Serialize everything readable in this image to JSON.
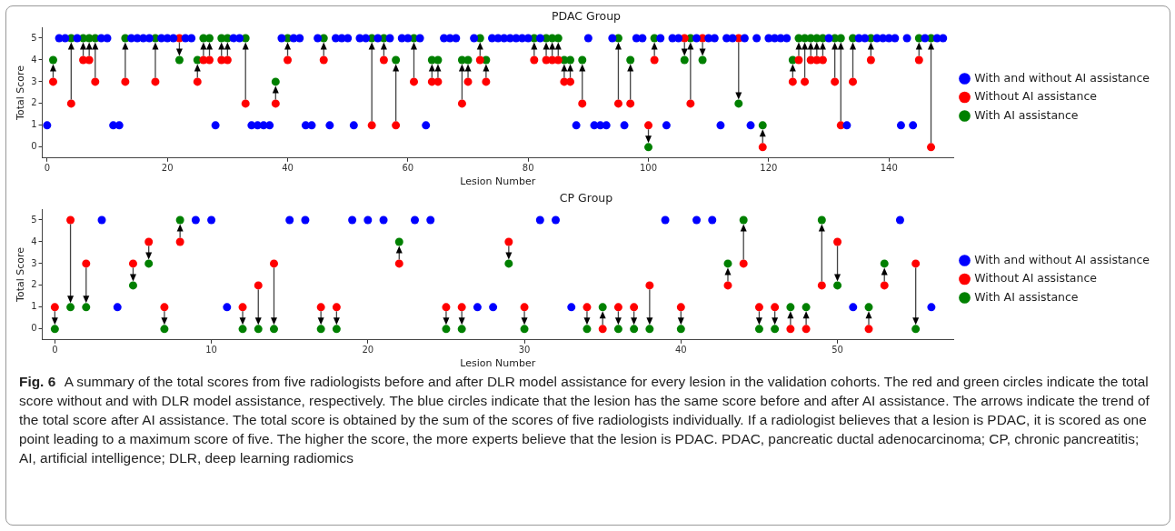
{
  "chart_data": [
    {
      "type": "scatter",
      "title": "PDAC Group",
      "xlabel": "Lesion Number",
      "ylabel": "Total Score",
      "xlim": [
        -0.8,
        150.7
      ],
      "ylim": [
        -0.5,
        5.5
      ],
      "xticks": [
        0,
        20,
        40,
        60,
        80,
        100,
        120,
        140
      ],
      "yticks": [
        0,
        1,
        2,
        3,
        4,
        5
      ],
      "grid": false,
      "legend": "right",
      "marker": "circle",
      "series": [
        {
          "name": "With and without AI assistance",
          "color": "#0000ff",
          "x": [
            0,
            2,
            3,
            5,
            9,
            10,
            11,
            12,
            14,
            15,
            16,
            17,
            19,
            20,
            21,
            23,
            24,
            28,
            31,
            32,
            34,
            35,
            36,
            37,
            39,
            41,
            42,
            43,
            44,
            45,
            47,
            48,
            49,
            50,
            51,
            52,
            53,
            55,
            57,
            59,
            60,
            62,
            63,
            66,
            67,
            68,
            71,
            74,
            75,
            76,
            77,
            78,
            79,
            80,
            82,
            88,
            90,
            91,
            92,
            93,
            94,
            96,
            98,
            99,
            102,
            103,
            104,
            105,
            108,
            110,
            111,
            112,
            113,
            114,
            116,
            117,
            118,
            120,
            121,
            122,
            123,
            130,
            133,
            135,
            136,
            138,
            139,
            140,
            141,
            142,
            143,
            144,
            146,
            148,
            149
          ],
          "values": [
            1,
            5,
            5,
            5,
            5,
            5,
            1,
            1,
            5,
            5,
            5,
            5,
            5,
            5,
            5,
            5,
            5,
            1,
            5,
            5,
            1,
            1,
            1,
            1,
            5,
            5,
            5,
            1,
            1,
            5,
            1,
            5,
            5,
            5,
            1,
            5,
            5,
            5,
            5,
            5,
            5,
            5,
            1,
            5,
            5,
            5,
            5,
            5,
            5,
            5,
            5,
            5,
            5,
            5,
            5,
            1,
            5,
            1,
            1,
            1,
            5,
            1,
            5,
            5,
            5,
            1,
            5,
            5,
            5,
            5,
            5,
            1,
            5,
            5,
            5,
            1,
            5,
            5,
            5,
            5,
            5,
            5,
            1,
            5,
            5,
            5,
            5,
            5,
            5,
            1,
            5,
            1,
            5,
            5,
            5
          ]
        },
        {
          "name": "Without AI assistance",
          "color": "#ff0000",
          "x": [
            1,
            4,
            6,
            7,
            8,
            13,
            18,
            22,
            25,
            26,
            27,
            29,
            30,
            33,
            38,
            40,
            46,
            54,
            56,
            58,
            61,
            64,
            65,
            69,
            70,
            72,
            73,
            81,
            83,
            84,
            85,
            86,
            87,
            89,
            95,
            97,
            100,
            101,
            106,
            107,
            109,
            115,
            119,
            124,
            125,
            126,
            127,
            128,
            129,
            131,
            132,
            134,
            137,
            145,
            147
          ],
          "values": [
            3,
            2,
            4,
            4,
            3,
            3,
            3,
            5,
            3,
            4,
            4,
            4,
            4,
            2,
            2,
            4,
            4,
            1,
            4,
            1,
            3,
            3,
            3,
            2,
            3,
            4,
            3,
            4,
            4,
            4,
            4,
            3,
            3,
            2,
            2,
            2,
            1,
            4,
            5,
            2,
            5,
            5,
            0,
            3,
            4,
            3,
            4,
            4,
            4,
            3,
            1,
            3,
            4,
            4,
            0
          ]
        },
        {
          "name": "With AI assistance",
          "color": "#008000",
          "x": [
            1,
            4,
            6,
            7,
            8,
            13,
            18,
            22,
            25,
            26,
            27,
            29,
            30,
            33,
            38,
            40,
            46,
            54,
            56,
            58,
            61,
            64,
            65,
            69,
            70,
            72,
            73,
            81,
            83,
            84,
            85,
            86,
            87,
            89,
            95,
            97,
            100,
            101,
            106,
            107,
            109,
            115,
            119,
            124,
            125,
            126,
            127,
            128,
            129,
            131,
            132,
            134,
            137,
            145,
            147
          ],
          "values": [
            4,
            5,
            5,
            5,
            5,
            5,
            5,
            4,
            4,
            5,
            5,
            5,
            5,
            5,
            3,
            5,
            5,
            5,
            5,
            4,
            5,
            4,
            4,
            4,
            4,
            5,
            4,
            5,
            5,
            5,
            5,
            4,
            4,
            4,
            5,
            4,
            0,
            5,
            4,
            5,
            4,
            2,
            1,
            4,
            5,
            5,
            5,
            5,
            5,
            5,
            5,
            5,
            5,
            5,
            5
          ]
        }
      ]
    },
    {
      "type": "scatter",
      "title": "CP Group",
      "xlabel": "Lesion Number",
      "ylabel": "Total Score",
      "xlim": [
        -0.8,
        57.4
      ],
      "ylim": [
        -0.5,
        5.5
      ],
      "xticks": [
        0,
        10,
        20,
        30,
        40,
        50
      ],
      "yticks": [
        0,
        1,
        2,
        3,
        4,
        5
      ],
      "grid": false,
      "legend": "right",
      "marker": "circle",
      "series": [
        {
          "name": "With and without AI assistance",
          "color": "#0000ff",
          "x": [
            3,
            4,
            9,
            10,
            11,
            15,
            16,
            19,
            20,
            21,
            23,
            24,
            27,
            28,
            31,
            32,
            33,
            39,
            41,
            42,
            51,
            54,
            56
          ],
          "values": [
            5,
            1,
            5,
            5,
            1,
            5,
            5,
            5,
            5,
            5,
            5,
            5,
            1,
            1,
            5,
            5,
            1,
            5,
            5,
            5,
            1,
            5,
            1
          ]
        },
        {
          "name": "Without AI assistance",
          "color": "#ff0000",
          "x": [
            0,
            1,
            2,
            5,
            6,
            7,
            8,
            12,
            13,
            14,
            17,
            18,
            22,
            25,
            26,
            29,
            30,
            34,
            35,
            36,
            37,
            38,
            40,
            43,
            44,
            45,
            46,
            47,
            48,
            49,
            50,
            52,
            53,
            55
          ],
          "values": [
            1,
            5,
            3,
            3,
            4,
            1,
            4,
            1,
            2,
            3,
            1,
            1,
            3,
            1,
            1,
            4,
            1,
            1,
            0,
            1,
            1,
            2,
            1,
            2,
            3,
            1,
            1,
            0,
            0,
            2,
            4,
            0,
            2,
            3
          ]
        },
        {
          "name": "With AI assistance",
          "color": "#008000",
          "x": [
            0,
            1,
            2,
            5,
            6,
            7,
            8,
            12,
            13,
            14,
            17,
            18,
            22,
            25,
            26,
            29,
            30,
            34,
            35,
            36,
            37,
            38,
            40,
            43,
            44,
            45,
            46,
            47,
            48,
            49,
            50,
            52,
            53,
            55
          ],
          "values": [
            0,
            1,
            1,
            2,
            3,
            0,
            5,
            0,
            0,
            0,
            0,
            0,
            4,
            0,
            0,
            3,
            0,
            0,
            1,
            0,
            0,
            0,
            0,
            3,
            5,
            0,
            0,
            1,
            1,
            5,
            2,
            1,
            3,
            0
          ]
        }
      ],
      "annotations": [
        "Fig. 6",
        "A summary of the total scores from five radiologists before and after DLR model assistance for every lesion in the validation cohorts. The red and green circles indicate the total score without and with DLR model assistance, respectively. The blue circles indicate that the lesion has the same score before and after AI assistance. The arrows indicate the trend of the total score after AI assistance. The total score is obtained by the sum of the scores of five radiologists individually. If a radiologist believes that a lesion is PDAC, it is scored as one point leading to a maximum score of five. The higher the score, the more experts believe that the lesion is PDAC. PDAC, pancreatic ductal adenocarcinoma; CP, chronic pancreatitis; AI, artificial intelligence; DLR, deep learning radiomics"
      ]
    }
  ]
}
